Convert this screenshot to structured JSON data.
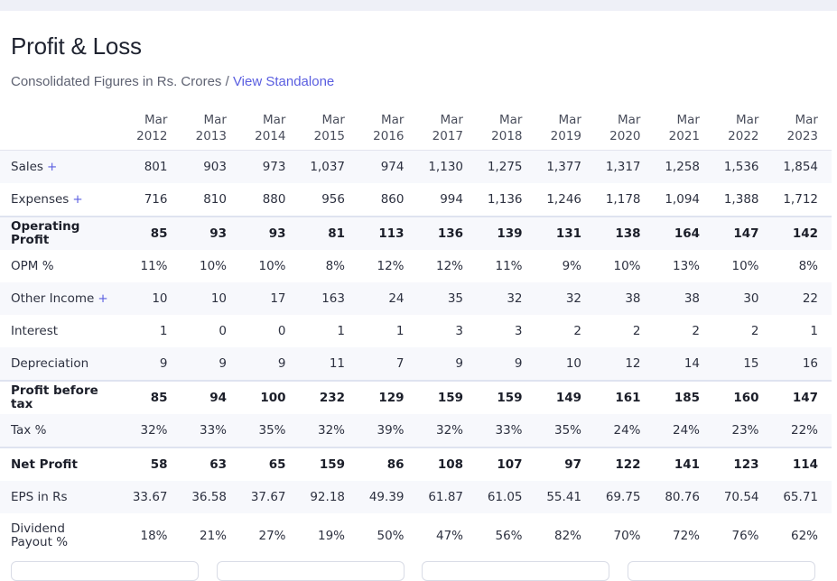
{
  "header": {
    "title": "Profit & Loss",
    "subtitle": "Consolidated Figures in Rs. Crores /",
    "link": "View Standalone"
  },
  "table": {
    "columns": [
      {
        "month": "Mar",
        "year": "2012"
      },
      {
        "month": "Mar",
        "year": "2013"
      },
      {
        "month": "Mar",
        "year": "2014"
      },
      {
        "month": "Mar",
        "year": "2015"
      },
      {
        "month": "Mar",
        "year": "2016"
      },
      {
        "month": "Mar",
        "year": "2017"
      },
      {
        "month": "Mar",
        "year": "2018"
      },
      {
        "month": "Mar",
        "year": "2019"
      },
      {
        "month": "Mar",
        "year": "2020"
      },
      {
        "month": "Mar",
        "year": "2021"
      },
      {
        "month": "Mar",
        "year": "2022"
      },
      {
        "month": "Mar",
        "year": "2023"
      }
    ],
    "rows": [
      {
        "label": "Sales",
        "expand": "+",
        "values": [
          "801",
          "903",
          "973",
          "1,037",
          "974",
          "1,130",
          "1,275",
          "1,377",
          "1,317",
          "1,258",
          "1,536",
          "1,854"
        ]
      },
      {
        "label": "Expenses",
        "expand": "+",
        "values": [
          "716",
          "810",
          "880",
          "956",
          "860",
          "994",
          "1,136",
          "1,246",
          "1,178",
          "1,094",
          "1,388",
          "1,712"
        ]
      },
      {
        "label": "Operating Profit",
        "bold": true,
        "values": [
          "85",
          "93",
          "93",
          "81",
          "113",
          "136",
          "139",
          "131",
          "138",
          "164",
          "147",
          "142"
        ]
      },
      {
        "label": "OPM %",
        "values": [
          "11%",
          "10%",
          "10%",
          "8%",
          "12%",
          "12%",
          "11%",
          "9%",
          "10%",
          "13%",
          "10%",
          "8%"
        ]
      },
      {
        "label": "Other Income",
        "expand": "+",
        "values": [
          "10",
          "10",
          "17",
          "163",
          "24",
          "35",
          "32",
          "32",
          "38",
          "38",
          "30",
          "22"
        ]
      },
      {
        "label": "Interest",
        "values": [
          "1",
          "0",
          "0",
          "1",
          "1",
          "3",
          "3",
          "2",
          "2",
          "2",
          "2",
          "1"
        ]
      },
      {
        "label": "Depreciation",
        "values": [
          "9",
          "9",
          "9",
          "11",
          "7",
          "9",
          "9",
          "10",
          "12",
          "14",
          "15",
          "16"
        ]
      },
      {
        "label": "Profit before tax",
        "bold": true,
        "values": [
          "85",
          "94",
          "100",
          "232",
          "129",
          "159",
          "159",
          "149",
          "161",
          "185",
          "160",
          "147"
        ]
      },
      {
        "label": "Tax %",
        "values": [
          "32%",
          "33%",
          "35%",
          "32%",
          "39%",
          "32%",
          "33%",
          "35%",
          "24%",
          "24%",
          "23%",
          "22%"
        ]
      },
      {
        "label": "Net Profit",
        "bold": true,
        "values": [
          "58",
          "63",
          "65",
          "159",
          "86",
          "108",
          "107",
          "97",
          "122",
          "141",
          "123",
          "114"
        ]
      },
      {
        "label": "EPS in Rs",
        "values": [
          "33.67",
          "36.58",
          "37.67",
          "92.18",
          "49.39",
          "61.87",
          "61.05",
          "55.41",
          "69.75",
          "80.76",
          "70.54",
          "65.71"
        ]
      },
      {
        "label": "Dividend Payout %",
        "values": [
          "18%",
          "21%",
          "27%",
          "19%",
          "50%",
          "47%",
          "56%",
          "82%",
          "70%",
          "72%",
          "76%",
          "62%"
        ]
      }
    ]
  }
}
